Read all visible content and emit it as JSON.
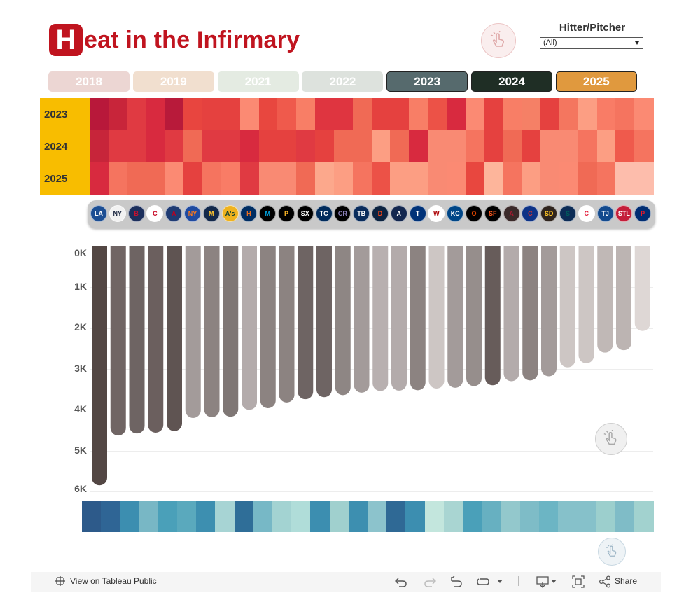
{
  "title": {
    "first_letter": "H",
    "rest": "eat in the Infirmary"
  },
  "filter": {
    "label": "Hitter/Pitcher",
    "value": "(All)"
  },
  "year_buttons": [
    {
      "label": "2018",
      "bg": "#ecd6d3",
      "fg": "#ffffff",
      "active": false
    },
    {
      "label": "2019",
      "bg": "#f1dfcf",
      "fg": "#ffffff",
      "active": false
    },
    {
      "label": "2021",
      "bg": "#e4ebe2",
      "fg": "#ffffff",
      "active": false
    },
    {
      "label": "2022",
      "bg": "#dde2dd",
      "fg": "#ffffff",
      "active": false
    },
    {
      "label": "2023",
      "bg": "#566a6d",
      "fg": "#ffffff",
      "active": true
    },
    {
      "label": "2024",
      "bg": "#1f2e25",
      "fg": "#ffffff",
      "active": true
    },
    {
      "label": "2025",
      "bg": "#e0993e",
      "fg": "#ffffff",
      "active": true
    }
  ],
  "teams": [
    {
      "abbr": "LA",
      "bg": "#1c4e93",
      "fg": "#ffffff"
    },
    {
      "abbr": "NY",
      "bg": "#f2f2f2",
      "fg": "#1c2841"
    },
    {
      "abbr": "B",
      "bg": "#1c2f5c",
      "fg": "#c8102e"
    },
    {
      "abbr": "C",
      "bg": "#ffffff",
      "fg": "#c6011f"
    },
    {
      "abbr": "A",
      "bg": "#1f3b73",
      "fg": "#ba0021"
    },
    {
      "abbr": "NY",
      "bg": "#1f4aa0",
      "fg": "#ff7a1a"
    },
    {
      "abbr": "M",
      "bg": "#13294b",
      "fg": "#ffc52f"
    },
    {
      "abbr": "A's",
      "bg": "#efb21e",
      "fg": "#003831"
    },
    {
      "abbr": "H",
      "bg": "#002d62",
      "fg": "#eb6e1f"
    },
    {
      "abbr": "M",
      "bg": "#000000",
      "fg": "#00a3e0"
    },
    {
      "abbr": "P",
      "bg": "#000000",
      "fg": "#fdb827"
    },
    {
      "abbr": "SX",
      "bg": "#000000",
      "fg": "#ffffff"
    },
    {
      "abbr": "TC",
      "bg": "#002b5c",
      "fg": "#ffffff"
    },
    {
      "abbr": "CR",
      "bg": "#000000",
      "fg": "#8a7fb8"
    },
    {
      "abbr": "TB",
      "bg": "#092c5c",
      "fg": "#ffffff"
    },
    {
      "abbr": "D",
      "bg": "#0c2340",
      "fg": "#fa4616"
    },
    {
      "abbr": "A",
      "bg": "#13274f",
      "fg": "#ffffff"
    },
    {
      "abbr": "T",
      "bg": "#003278",
      "fg": "#ffffff"
    },
    {
      "abbr": "W",
      "bg": "#ffffff",
      "fg": "#ab0003"
    },
    {
      "abbr": "KC",
      "bg": "#004687",
      "fg": "#ffffff"
    },
    {
      "abbr": "O",
      "bg": "#000000",
      "fg": "#df4601"
    },
    {
      "abbr": "SF",
      "bg": "#000000",
      "fg": "#fd5a1e"
    },
    {
      "abbr": "A",
      "bg": "#3b2a2a",
      "fg": "#a71930"
    },
    {
      "abbr": "C",
      "bg": "#0e3386",
      "fg": "#cc3433"
    },
    {
      "abbr": "SD",
      "bg": "#2f241d",
      "fg": "#ffc425"
    },
    {
      "abbr": "S",
      "bg": "#0c2c56",
      "fg": "#005c5c"
    },
    {
      "abbr": "C",
      "bg": "#ffffff",
      "fg": "#e31937"
    },
    {
      "abbr": "TJ",
      "bg": "#134a8e",
      "fg": "#ffffff"
    },
    {
      "abbr": "STL",
      "bg": "#c41e3a",
      "fg": "#ffffff"
    },
    {
      "abbr": "P",
      "bg": "#002d72",
      "fg": "#e81828"
    }
  ],
  "chart_data": [
    {
      "type": "heatmap",
      "rows": [
        "2023",
        "2024",
        "2025"
      ],
      "columns": 30,
      "colors": [
        [
          "#b8183a",
          "#c8253a",
          "#e03a42",
          "#d82a3f",
          "#b81a3a",
          "#e8453f",
          "#e5413f",
          "#e5413f",
          "#fb8a73",
          "#e8473f",
          "#ef5a4c",
          "#f87e66",
          "#df3540",
          "#df3540",
          "#f06a55",
          "#e5413f",
          "#e5413f",
          "#f87e66",
          "#ec5247",
          "#d82a3f",
          "#fb8a73",
          "#e5413f",
          "#f87e66",
          "#f58066",
          "#e5413f",
          "#f4765f",
          "#fc9e83",
          "#f97c66",
          "#f5745f",
          "#fb8a73"
        ],
        [
          "#c7253a",
          "#e03a42",
          "#e03a42",
          "#d82a3f",
          "#e03a42",
          "#f06a55",
          "#e03a42",
          "#e03a42",
          "#d82a3f",
          "#e5413f",
          "#e5413f",
          "#e03a42",
          "#e5413f",
          "#f06a55",
          "#f06a55",
          "#fc9e83",
          "#f06a55",
          "#d82a3f",
          "#f98a73",
          "#f98a73",
          "#f5745f",
          "#e5413f",
          "#f06a55",
          "#e5413f",
          "#f98a73",
          "#f98a73",
          "#f5745f",
          "#fc9e83",
          "#ef5a4c",
          "#f5745f"
        ],
        [
          "#d82a3f",
          "#f5745f",
          "#f06a55",
          "#f06a55",
          "#fb8a73",
          "#e5413f",
          "#f5745f",
          "#f97c66",
          "#e03a42",
          "#f98a73",
          "#f98a73",
          "#f06a55",
          "#fca88c",
          "#fc9e83",
          "#f5745f",
          "#ec5247",
          "#fc9e83",
          "#fc9e83",
          "#f98a73",
          "#fb8a73",
          "#e8473f",
          "#fdb59b",
          "#f5745f",
          "#fc9e83",
          "#f98a73",
          "#fb8a73",
          "#f06a55",
          "#f5745f",
          "#fdbdac",
          "#fdbdac"
        ]
      ]
    },
    {
      "type": "bar",
      "ylabel": "",
      "ylim": [
        0,
        6000
      ],
      "y_inverted": true,
      "ticks": [
        "0K",
        "1K",
        "2K",
        "3K",
        "4K",
        "5K",
        "6K"
      ],
      "values": [
        5850,
        4630,
        4580,
        4560,
        4520,
        4200,
        4180,
        4170,
        4000,
        3960,
        3820,
        3740,
        3690,
        3640,
        3580,
        3540,
        3530,
        3520,
        3480,
        3460,
        3420,
        3400,
        3300,
        3280,
        3180,
        2960,
        2860,
        2600,
        2540,
        2070
      ],
      "colors": [
        "#534744",
        "#706564",
        "#6e6463",
        "#6b5f5e",
        "#5f5452",
        "#a39b9a",
        "#8c8381",
        "#7f7775",
        "#b3abab",
        "#8c8381",
        "#8c8381",
        "#6e6463",
        "#6e6463",
        "#8e8684",
        "#a39b9a",
        "#b8b0b0",
        "#b3abab",
        "#8c8381",
        "#cdc6c4",
        "#a39b9a",
        "#968e8c",
        "#675c5a",
        "#b3abab",
        "#8c8381",
        "#a39b9a",
        "#cdc6c4",
        "#cdc6c4",
        "#c0b8b6",
        "#bcb4b2",
        "#ded7d5"
      ]
    },
    {
      "type": "heatmap",
      "rows": [
        ""
      ],
      "columns": 30,
      "colors": [
        "#2d5a8a",
        "#2f6595",
        "#3c8eb0",
        "#78b7c5",
        "#4aa0b9",
        "#5aa9bd",
        "#3d8fb0",
        "#a7d4d4",
        "#2f6e98",
        "#77b8c6",
        "#a3d3d2",
        "#b0ddd9",
        "#3c8eb0",
        "#a0d0ce",
        "#3d8fb0",
        "#8cc3cc",
        "#2f6995",
        "#3c8eb0",
        "#c3e6dd",
        "#a9d5d2",
        "#4aa0b9",
        "#67b0c1",
        "#93c8cc",
        "#7ebcc7",
        "#6cb5c4",
        "#86c1ca",
        "#86c1ca",
        "#9ccfcd",
        "#7fbcc7",
        "#a2d2cf"
      ]
    }
  ],
  "footer": {
    "view_label": "View on Tableau Public",
    "share_label": "Share"
  }
}
